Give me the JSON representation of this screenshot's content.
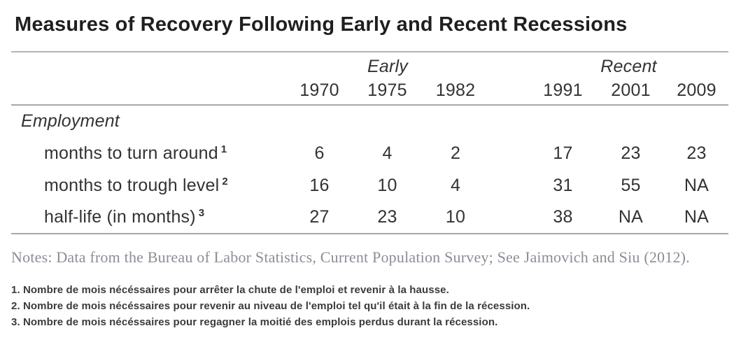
{
  "title": "Measures of Recovery Following Early and Recent Recessions",
  "chart_data": {
    "type": "table",
    "title": "Measures of Recovery Following Early and Recent Recessions",
    "column_groups": [
      {
        "label": "Early",
        "columns": [
          "1970",
          "1975",
          "1982"
        ]
      },
      {
        "label": "Recent",
        "columns": [
          "1991",
          "2001",
          "2009"
        ]
      }
    ],
    "row_section": "Employment",
    "rows": [
      {
        "label": "months to turn around",
        "footnote": "1",
        "values": [
          "6",
          "4",
          "2",
          "17",
          "23",
          "23"
        ]
      },
      {
        "label": "months to trough level",
        "footnote": "2",
        "values": [
          "16",
          "10",
          "4",
          "31",
          "55",
          "NA"
        ]
      },
      {
        "label": "half-life (in months)",
        "footnote": "3",
        "values": [
          "27",
          "23",
          "10",
          "38",
          "NA",
          "NA"
        ]
      }
    ]
  },
  "notes": "Notes: Data from the Bureau of Labor Statistics, Current Population Survey; See Jaimovich and Siu (2012).",
  "footnotes": [
    "1. Nombre de mois nécéssaires pour arrêter la chute de l'emploi et revenir à la hausse.",
    "2. Nombre de mois nécéssaires pour revenir au niveau de l'emploi tel qu'il était à la fin de la récession.",
    "3. Nombre de mois nécéssaires pour regagner la moitié des emplois perdus durant la récession."
  ],
  "colors": {
    "rule": "#a9a9a9",
    "title_text": "#1f1f1f",
    "table_text": "#333333",
    "notes_text": "#8b8e96",
    "footnote_text": "#3b3b3b"
  }
}
